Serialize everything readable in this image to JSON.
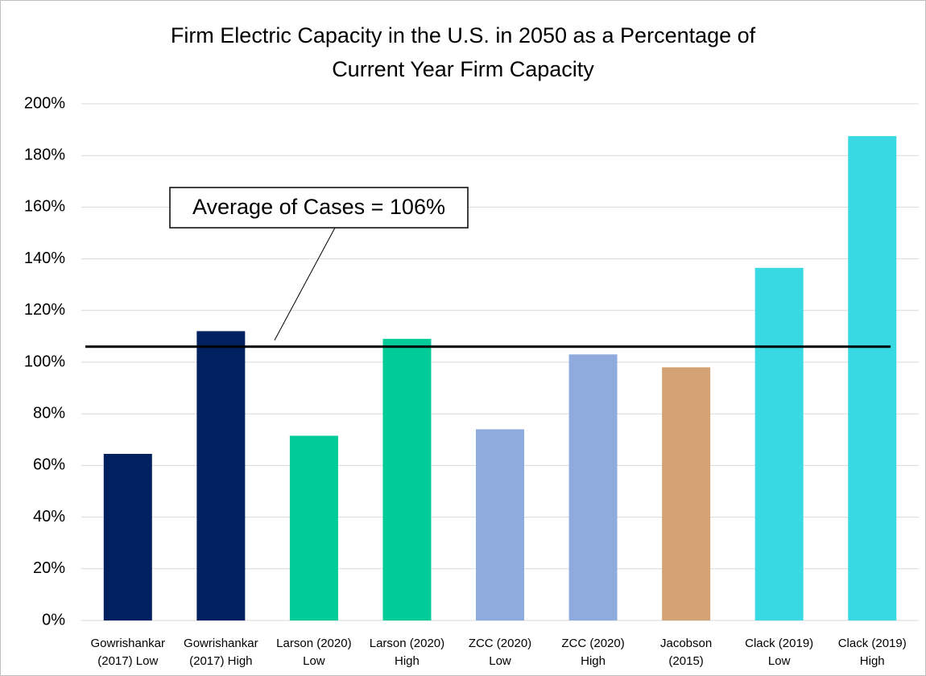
{
  "chart_data": {
    "type": "bar",
    "title": "Firm Electric Capacity in the U.S. in 2050 as a Percentage of\nCurrent Year Firm Capacity",
    "categories": [
      "Gowrishankar\n(2017) Low",
      "Gowrishankar\n(2017) High",
      "Larson (2020)\nLow",
      "Larson (2020)\nHigh",
      "ZCC (2020)\nLow",
      "ZCC (2020)\nHigh",
      "Jacobson\n(2015)",
      "Clack (2019)\nLow",
      "Clack (2019)\nHigh"
    ],
    "values": [
      64.5,
      112,
      71.5,
      109,
      74,
      103,
      98,
      136.5,
      187.5
    ],
    "colors": [
      "#002060",
      "#002060",
      "#00cc99",
      "#00cc99",
      "#8faadc",
      "#8faadc",
      "#d4a373",
      "#38d9e3",
      "#38d9e3"
    ],
    "ylim": [
      0,
      200
    ],
    "yticks": [
      {
        "value": 0,
        "label": "0%"
      },
      {
        "value": 20,
        "label": "20%"
      },
      {
        "value": 40,
        "label": "40%"
      },
      {
        "value": 60,
        "label": "60%"
      },
      {
        "value": 80,
        "label": "80%"
      },
      {
        "value": 100,
        "label": "100%"
      },
      {
        "value": 120,
        "label": "120%"
      },
      {
        "value": 140,
        "label": "140%"
      },
      {
        "value": 160,
        "label": "160%"
      },
      {
        "value": 180,
        "label": "180%"
      },
      {
        "value": 200,
        "label": "200%"
      }
    ],
    "grid": true,
    "annotation": {
      "text": "Average of Cases = 106%",
      "value": 106
    }
  }
}
